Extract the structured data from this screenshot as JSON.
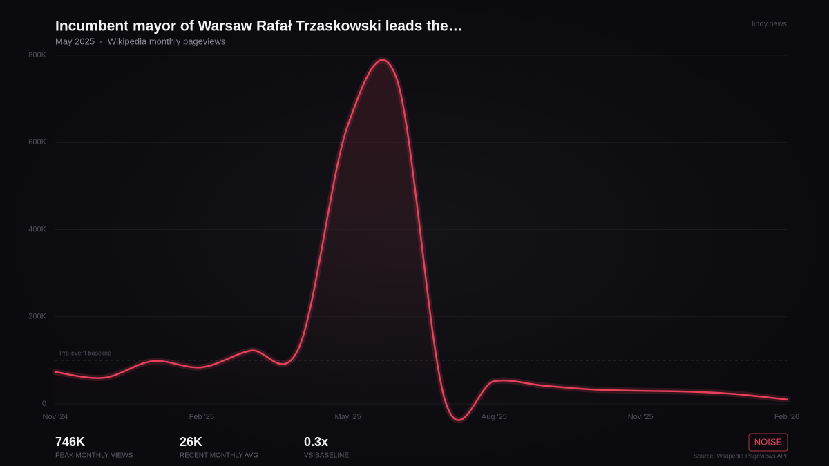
{
  "chart_data": {
    "type": "line",
    "title": "Incumbent mayor of Warsaw Rafał Trzaskowski leads the…",
    "subtitle": "May 2025  -  Wikipedia monthly pageviews",
    "brand": "lindy.news",
    "categories": [
      "Nov '24",
      null,
      null,
      "Feb '25",
      null,
      null,
      "May '25",
      null,
      null,
      "Aug '25",
      null,
      null,
      "Nov '25",
      null,
      null,
      "Feb '26"
    ],
    "series": [
      {
        "name": "Pageviews",
        "color": "#e8415c",
        "values": [
          73000,
          60000,
          98000,
          84000,
          122000,
          130000,
          640000,
          746000,
          5000,
          52000,
          42000,
          33000,
          30000,
          28000,
          22000,
          10000
        ]
      }
    ],
    "ylim": [
      0,
      800000
    ],
    "yticks": [
      0,
      {
        "value": 200000,
        "label": "200K"
      },
      {
        "value": 400000,
        "label": "400K"
      },
      {
        "value": 600000,
        "label": "600K"
      },
      {
        "value": 800000,
        "label": "800K"
      }
    ],
    "grid": true,
    "baseline": 100000,
    "baseline_label": "Pre-event baseline",
    "stats": [
      {
        "value": "746K",
        "label": "PEAK MONTHLY VIEWS"
      },
      {
        "value": "26K",
        "label": "RECENT MONTHLY AVG"
      },
      {
        "value": "0.3x",
        "label": "VS BASELINE"
      }
    ],
    "badge": "NOISE",
    "source": "Source: Wikipedia Pageviews API"
  }
}
